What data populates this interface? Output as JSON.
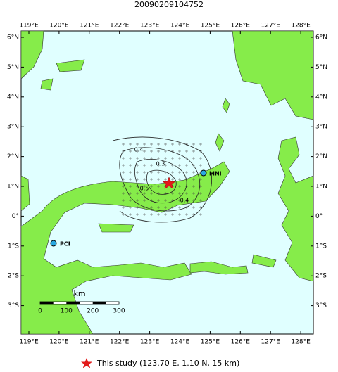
{
  "header": {
    "title": "20090209104752"
  },
  "map": {
    "lon_labels": [
      "119°E",
      "120°E",
      "121°E",
      "122°E",
      "123°E",
      "124°E",
      "125°E",
      "126°E",
      "127°E",
      "128°E"
    ],
    "lat_labels": [
      "6°N",
      "5°N",
      "4°N",
      "3°N",
      "2°N",
      "1°N",
      "0°",
      "1°S",
      "2°S",
      "3°S"
    ],
    "stations": [
      {
        "label": "MNI"
      },
      {
        "label": "PCI"
      }
    ],
    "contour_labels": [
      "0.4",
      "0.3",
      "0.5",
      "0.4"
    ],
    "scale_bar": {
      "unit": "km",
      "labels": [
        "0",
        "100",
        "200",
        "300"
      ]
    }
  },
  "legend": {
    "label": "This study (123.70 E, 1.10 N, 15 km)"
  }
}
